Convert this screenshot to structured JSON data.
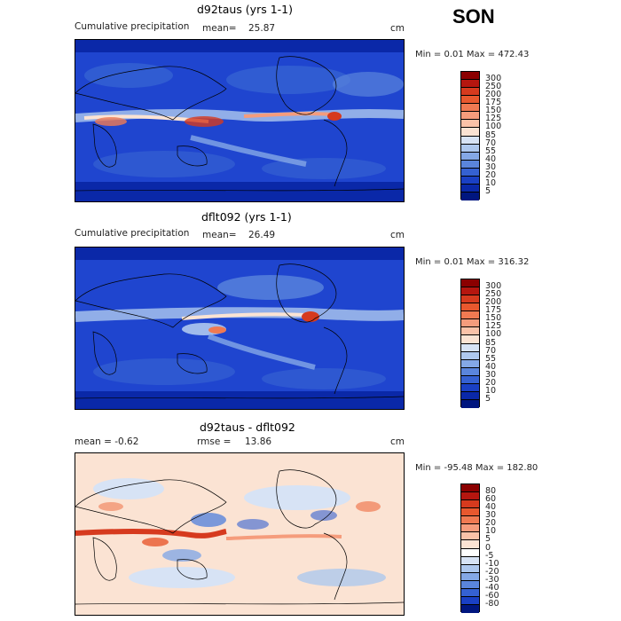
{
  "season": "SON",
  "panels": [
    {
      "title": "d92taus (yrs 1-1)",
      "left_label": "Cumulative precipitation",
      "stat1_label": "mean=",
      "stat1_value": "25.87",
      "units": "cm",
      "minmax": "Min =    0.01 Max = 472.43",
      "colorbar_labels": [
        "300",
        "250",
        "200",
        "175",
        "150",
        "125",
        "100",
        "85",
        "70",
        "55",
        "40",
        "30",
        "20",
        "10",
        "5"
      ],
      "colorbar_colors": [
        "#8b0000",
        "#b5160f",
        "#d63a1e",
        "#e8582e",
        "#f07a52",
        "#f59c7c",
        "#fac2a8",
        "#fbe3d3",
        "#d7e3f5",
        "#aec8ee",
        "#84a8e6",
        "#5a85dc",
        "#3561d2",
        "#1a40c4",
        "#0a28a8",
        "#00167f"
      ]
    },
    {
      "title": "dflt092 (yrs 1-1)",
      "left_label": "Cumulative precipitation",
      "stat1_label": "mean=",
      "stat1_value": "26.49",
      "units": "cm",
      "minmax": "Min =    0.01 Max = 316.32",
      "colorbar_labels": [
        "300",
        "250",
        "200",
        "175",
        "150",
        "125",
        "100",
        "85",
        "70",
        "55",
        "40",
        "30",
        "20",
        "10",
        "5"
      ],
      "colorbar_colors": [
        "#8b0000",
        "#b5160f",
        "#d63a1e",
        "#e8582e",
        "#f07a52",
        "#f59c7c",
        "#fac2a8",
        "#fbe3d3",
        "#d7e3f5",
        "#aec8ee",
        "#84a8e6",
        "#5a85dc",
        "#3561d2",
        "#1a40c4",
        "#0a28a8",
        "#00167f"
      ]
    },
    {
      "title": "d92taus - dflt092",
      "left_label": "mean =   -0.62",
      "stat1_label": "rmse =",
      "stat1_value": "13.86",
      "units": "cm",
      "minmax": "Min = -95.48 Max = 182.80",
      "colorbar_labels": [
        "80",
        "60",
        "40",
        "30",
        "20",
        "10",
        "5",
        "0",
        "-5",
        "-10",
        "-20",
        "-30",
        "-40",
        "-60",
        "-80"
      ],
      "colorbar_colors": [
        "#8b0000",
        "#b5160f",
        "#d63a1e",
        "#e8582e",
        "#f07a52",
        "#f59c7c",
        "#fac2a8",
        "#fbe3d3",
        "#ffffff",
        "#d7e3f5",
        "#aec8ee",
        "#84a8e6",
        "#5a85dc",
        "#3561d2",
        "#1a40c4",
        "#00167f"
      ]
    }
  ]
}
